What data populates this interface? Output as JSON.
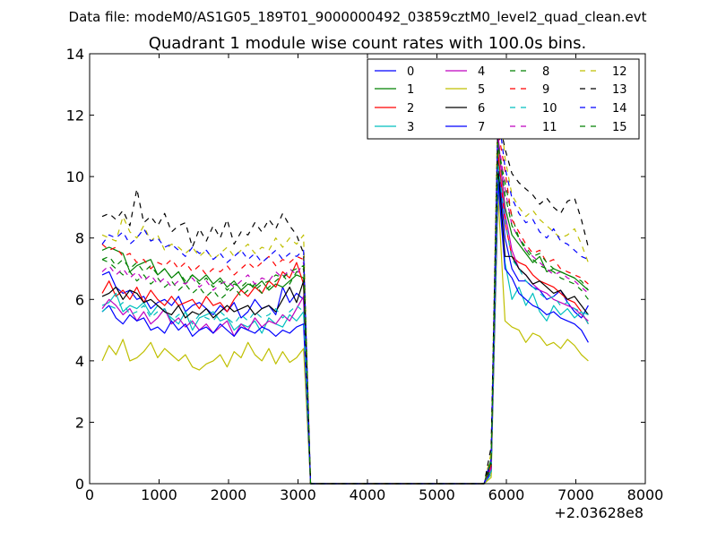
{
  "chart_data": {
    "type": "line",
    "suptitle": "Data file: modeM0/AS1G05_189T01_9000000492_03859cztM0_level2_quad_clean.evt",
    "title": "Quadrant 1 module wise count rates with 100.0s bins.",
    "xlabel": "",
    "ylabel": "",
    "x_offset_label": "+2.03628e8",
    "xlim": [
      0,
      8000
    ],
    "ylim": [
      0,
      14
    ],
    "x_ticks": [
      "0",
      "1000",
      "2000",
      "3000",
      "4000",
      "5000",
      "6000",
      "7000",
      "8000"
    ],
    "y_ticks": [
      "0",
      "2",
      "4",
      "6",
      "8",
      "10",
      "12",
      "14"
    ],
    "legend_position": "top-right",
    "legend_columns": 4,
    "x": [
      180,
      280,
      380,
      480,
      580,
      680,
      780,
      880,
      980,
      1080,
      1180,
      1280,
      1380,
      1480,
      1580,
      1680,
      1780,
      1880,
      1980,
      2080,
      2180,
      2280,
      2380,
      2480,
      2580,
      2680,
      2780,
      2880,
      2980,
      3080,
      3180,
      3280,
      3380,
      3480,
      3580,
      3680,
      3780,
      3880,
      3980,
      4080,
      4180,
      4280,
      4380,
      4480,
      4580,
      4680,
      4780,
      4880,
      4980,
      5080,
      5180,
      5280,
      5380,
      5480,
      5580,
      5680,
      5780,
      5880,
      5980,
      6080,
      6180,
      6280,
      6380,
      6480,
      6580,
      6680,
      6780,
      6880,
      6980,
      7080,
      7180
    ],
    "series": [
      {
        "name": "0",
        "color": "#0000ff",
        "dashed": false,
        "values": [
          6.8,
          6.9,
          6.4,
          6.2,
          6.3,
          6.0,
          6.1,
          5.7,
          5.9,
          6.0,
          5.8,
          6.1,
          5.6,
          5.8,
          5.9,
          5.7,
          5.5,
          5.8,
          5.6,
          5.9,
          5.4,
          5.6,
          6.0,
          5.7,
          5.8,
          5.5,
          6.4,
          5.9,
          6.2,
          6.0,
          0,
          0,
          0,
          0,
          0,
          0,
          0,
          0,
          0,
          0,
          0,
          0,
          0,
          0,
          0,
          0,
          0,
          0,
          0,
          0,
          0,
          0,
          0,
          0,
          0,
          0,
          0.4,
          10.5,
          8.0,
          7.0,
          6.6,
          6.6,
          6.4,
          6.3,
          6.0,
          6.1,
          6.3,
          5.9,
          5.6,
          5.4,
          5.8
        ]
      },
      {
        "name": "1",
        "color": "#008000",
        "dashed": false,
        "values": [
          7.6,
          7.7,
          7.6,
          7.5,
          6.9,
          7.1,
          7.2,
          7.3,
          6.8,
          7.0,
          6.7,
          6.9,
          6.5,
          6.8,
          6.6,
          6.8,
          6.5,
          6.7,
          6.4,
          6.6,
          6.3,
          6.5,
          6.4,
          6.6,
          6.3,
          6.5,
          6.4,
          6.6,
          6.8,
          6.7,
          0,
          0,
          0,
          0,
          0,
          0,
          0,
          0,
          0,
          0,
          0,
          0,
          0,
          0,
          0,
          0,
          0,
          0,
          0,
          0,
          0,
          0,
          0,
          0,
          0,
          0,
          0.8,
          11.2,
          9.0,
          8.1,
          7.8,
          7.5,
          7.2,
          7.4,
          6.9,
          7.0,
          6.9,
          6.8,
          6.7,
          6.5,
          6.3
        ]
      },
      {
        "name": "2",
        "color": "#ff0000",
        "dashed": false,
        "values": [
          6.2,
          6.6,
          6.1,
          6.3,
          6.0,
          6.4,
          5.9,
          6.3,
          6.0,
          5.8,
          6.1,
          5.8,
          5.9,
          6.0,
          5.7,
          6.1,
          5.8,
          5.9,
          5.6,
          6.0,
          6.3,
          6.1,
          6.4,
          6.2,
          6.6,
          6.4,
          6.9,
          6.7,
          7.2,
          6.5,
          0,
          0,
          0,
          0,
          0,
          0,
          0,
          0,
          0,
          0,
          0,
          0,
          0,
          0,
          0,
          0,
          0,
          0,
          0,
          0,
          0,
          0,
          0,
          0,
          0,
          0,
          0.5,
          10.8,
          8.5,
          7.4,
          7.2,
          7.1,
          6.8,
          6.6,
          6.5,
          6.4,
          6.2,
          6.0,
          5.9,
          5.6,
          5.2
        ]
      },
      {
        "name": "3",
        "color": "#00bfbf",
        "dashed": false,
        "values": [
          5.8,
          5.9,
          6.2,
          5.6,
          5.8,
          5.7,
          5.9,
          5.5,
          5.8,
          5.6,
          5.4,
          5.2,
          5.6,
          5.0,
          5.4,
          5.5,
          5.6,
          5.3,
          5.4,
          5.0,
          5.2,
          5.1,
          5.3,
          4.9,
          5.4,
          5.2,
          5.1,
          5.5,
          5.3,
          5.6,
          0,
          0,
          0,
          0,
          0,
          0,
          0,
          0,
          0,
          0,
          0,
          0,
          0,
          0,
          0,
          0,
          0,
          0,
          0,
          0,
          0,
          0,
          0,
          0,
          0,
          0,
          0.3,
          10.0,
          7.2,
          6.0,
          6.4,
          5.8,
          6.2,
          5.6,
          5.3,
          5.8,
          5.5,
          5.7,
          5.4,
          5.6,
          5.2
        ]
      },
      {
        "name": "4",
        "color": "#bf00bf",
        "dashed": false,
        "values": [
          5.7,
          6.0,
          5.8,
          5.5,
          5.7,
          5.3,
          5.6,
          5.2,
          5.4,
          5.7,
          5.2,
          5.4,
          5.1,
          5.3,
          5.0,
          5.2,
          4.9,
          5.1,
          5.3,
          4.8,
          5.2,
          5.0,
          5.4,
          5.1,
          5.3,
          5.2,
          5.5,
          5.3,
          5.7,
          6.1,
          0,
          0,
          0,
          0,
          0,
          0,
          0,
          0,
          0,
          0,
          0,
          0,
          0,
          0,
          0,
          0,
          0,
          0,
          0,
          0,
          0,
          0,
          0,
          0,
          0,
          0,
          0.6,
          11.4,
          8.8,
          7.6,
          7.0,
          6.8,
          6.5,
          6.3,
          6.2,
          6.0,
          5.9,
          5.8,
          5.7,
          5.5,
          5.3
        ]
      },
      {
        "name": "5",
        "color": "#bfbf00",
        "dashed": false,
        "values": [
          4.0,
          4.5,
          4.2,
          4.7,
          4.0,
          4.1,
          4.3,
          4.6,
          4.1,
          4.4,
          4.2,
          4.0,
          4.2,
          3.8,
          3.7,
          3.9,
          4.0,
          4.2,
          3.8,
          4.3,
          4.1,
          4.6,
          4.2,
          4.0,
          4.4,
          3.9,
          4.3,
          3.95,
          4.1,
          4.4,
          0,
          0,
          0,
          0,
          0,
          0,
          0,
          0,
          0,
          0,
          0,
          0,
          0,
          0,
          0,
          0,
          0,
          0,
          0,
          0,
          0,
          0,
          0,
          0,
          0,
          0,
          0.2,
          9.4,
          5.3,
          5.1,
          5.0,
          4.6,
          4.9,
          4.8,
          4.5,
          4.6,
          4.4,
          4.7,
          4.5,
          4.2,
          4.0
        ]
      },
      {
        "name": "6",
        "color": "#000000",
        "dashed": false,
        "values": [
          6.1,
          6.2,
          6.4,
          6.0,
          6.3,
          6.2,
          5.9,
          6.0,
          5.8,
          5.6,
          5.5,
          5.8,
          5.4,
          5.6,
          5.5,
          5.7,
          5.4,
          5.6,
          5.8,
          5.6,
          5.7,
          5.8,
          5.5,
          5.7,
          5.8,
          5.6,
          6.0,
          6.4,
          5.9,
          6.6,
          0,
          0,
          0,
          0,
          0,
          0,
          0,
          0,
          0,
          0,
          0,
          0,
          0,
          0,
          0,
          0,
          0,
          0,
          0,
          0,
          0,
          0,
          0,
          0,
          0,
          0,
          0.7,
          10.3,
          7.4,
          7.4,
          7.0,
          6.8,
          6.5,
          6.6,
          6.4,
          6.2,
          6.3,
          6.0,
          6.1,
          5.8,
          5.5
        ]
      },
      {
        "name": "7",
        "color": "#0000ff",
        "dashed": false,
        "values": [
          5.6,
          5.8,
          5.4,
          5.2,
          5.5,
          5.3,
          5.4,
          5.0,
          5.1,
          4.9,
          5.3,
          5.0,
          5.2,
          4.8,
          5.0,
          5.1,
          4.9,
          5.2,
          5.0,
          4.8,
          5.1,
          5.0,
          4.9,
          5.1,
          5.0,
          4.8,
          5.0,
          4.9,
          5.1,
          5.2,
          0,
          0,
          0,
          0,
          0,
          0,
          0,
          0,
          0,
          0,
          0,
          0,
          0,
          0,
          0,
          0,
          0,
          0,
          0,
          0,
          0,
          0,
          0,
          0,
          0,
          0,
          0.4,
          9.8,
          7.0,
          6.7,
          6.2,
          6.0,
          5.8,
          5.7,
          5.5,
          5.6,
          5.4,
          5.3,
          5.2,
          5.0,
          4.6
        ]
      },
      {
        "name": "8",
        "color": "#008000",
        "dashed": true,
        "values": [
          7.3,
          7.2,
          7.0,
          6.8,
          6.9,
          6.6,
          6.8,
          6.5,
          6.7,
          6.4,
          6.6,
          6.3,
          6.5,
          6.2,
          6.4,
          6.1,
          6.3,
          6.0,
          6.2,
          6.4,
          6.1,
          6.3,
          6.5,
          6.2,
          6.4,
          6.6,
          6.8,
          6.5,
          6.9,
          7.0,
          0,
          0,
          0,
          0,
          0,
          0,
          0,
          0,
          0,
          0,
          0,
          0,
          0,
          0,
          0,
          0,
          0,
          0,
          0,
          0,
          0,
          0,
          0,
          0,
          0,
          0,
          0.5,
          11.0,
          9.8,
          8.7,
          8.0,
          7.6,
          7.3,
          7.1,
          7.0,
          6.9,
          6.7,
          6.6,
          6.5,
          6.3,
          6.0
        ]
      },
      {
        "name": "9",
        "color": "#ff0000",
        "dashed": true,
        "values": [
          7.8,
          7.6,
          7.7,
          7.4,
          7.5,
          7.2,
          7.3,
          7.0,
          7.2,
          7.1,
          7.3,
          7.0,
          7.2,
          6.9,
          7.1,
          6.8,
          7.0,
          6.9,
          7.1,
          6.8,
          7.0,
          7.2,
          7.0,
          7.2,
          7.4,
          7.1,
          7.3,
          7.2,
          7.4,
          7.3,
          0,
          0,
          0,
          0,
          0,
          0,
          0,
          0,
          0,
          0,
          0,
          0,
          0,
          0,
          0,
          0,
          0,
          0,
          0,
          0,
          0,
          0,
          0,
          0,
          0,
          0,
          0.6,
          11.5,
          10.2,
          8.6,
          8.2,
          7.8,
          7.5,
          7.6,
          7.2,
          7.3,
          7.0,
          6.9,
          6.8,
          6.7,
          6.5
        ]
      },
      {
        "name": "10",
        "color": "#00bfbf",
        "dashed": true,
        "values": [
          5.6,
          5.8,
          5.7,
          5.9,
          5.5,
          5.6,
          5.8,
          5.4,
          5.6,
          5.7,
          5.3,
          5.5,
          5.6,
          5.2,
          5.5,
          5.4,
          5.3,
          5.6,
          5.4,
          5.2,
          5.5,
          5.3,
          5.6,
          5.4,
          5.5,
          5.7,
          5.4,
          5.6,
          5.8,
          5.6,
          0,
          0,
          0,
          0,
          0,
          0,
          0,
          0,
          0,
          0,
          0,
          0,
          0,
          0,
          0,
          0,
          0,
          0,
          0,
          0,
          0,
          0,
          0,
          0,
          0,
          0,
          0.4,
          10.4,
          8.6,
          7.3,
          7.0,
          6.6,
          6.4,
          6.2,
          6.0,
          6.1,
          5.8,
          5.9,
          5.7,
          5.6,
          5.5
        ]
      },
      {
        "name": "11",
        "color": "#bf00bf",
        "dashed": true,
        "values": [
          6.9,
          7.1,
          6.8,
          7.0,
          6.7,
          6.9,
          6.6,
          6.8,
          6.5,
          6.7,
          6.4,
          6.6,
          6.5,
          6.7,
          6.4,
          6.6,
          6.3,
          6.5,
          6.6,
          6.4,
          6.6,
          6.8,
          6.5,
          6.7,
          6.6,
          6.9,
          6.7,
          7.0,
          6.8,
          7.2,
          0,
          0,
          0,
          0,
          0,
          0,
          0,
          0,
          0,
          0,
          0,
          0,
          0,
          0,
          0,
          0,
          0,
          0,
          0,
          0,
          0,
          0,
          0,
          0,
          0,
          0,
          0.5,
          11.3,
          9.6,
          8.4,
          8.0,
          7.6,
          7.4,
          7.2,
          7.0,
          6.8,
          6.9,
          6.7,
          6.6,
          6.4,
          6.2
        ]
      },
      {
        "name": "12",
        "color": "#bfbf00",
        "dashed": true,
        "values": [
          8.1,
          8.0,
          7.9,
          8.7,
          8.2,
          8.0,
          8.4,
          7.9,
          8.1,
          7.6,
          7.8,
          7.7,
          7.5,
          7.7,
          7.4,
          7.6,
          7.3,
          7.5,
          7.7,
          7.4,
          7.6,
          7.8,
          7.5,
          7.7,
          7.6,
          8.0,
          7.7,
          8.0,
          7.8,
          8.1,
          0,
          0,
          0,
          0,
          0,
          0,
          0,
          0,
          0,
          0,
          0,
          0,
          0,
          0,
          0,
          0,
          0,
          0,
          0,
          0,
          0,
          0,
          0,
          0,
          0,
          0,
          1.0,
          12.9,
          10.6,
          9.4,
          9.0,
          8.7,
          8.9,
          8.6,
          8.4,
          8.2,
          8.0,
          8.1,
          8.3,
          7.8,
          7.2
        ]
      },
      {
        "name": "13",
        "color": "#000000",
        "dashed": true,
        "values": [
          8.7,
          8.8,
          8.6,
          8.9,
          8.4,
          9.6,
          8.5,
          8.7,
          8.4,
          8.8,
          8.2,
          8.4,
          8.5,
          7.7,
          8.3,
          7.9,
          8.4,
          8.0,
          8.6,
          7.8,
          8.2,
          8.1,
          8.5,
          8.2,
          8.6,
          8.3,
          8.8,
          8.4,
          8.1,
          7.5,
          0,
          0,
          0,
          0,
          0,
          0,
          0,
          0,
          0,
          0,
          0,
          0,
          0,
          0,
          0,
          0,
          0,
          0,
          0,
          0,
          0,
          0,
          0,
          0,
          0,
          0,
          1.2,
          12.0,
          10.9,
          10.1,
          9.8,
          9.6,
          9.4,
          9.1,
          9.3,
          9.0,
          8.8,
          9.2,
          9.3,
          8.6,
          7.7
        ]
      },
      {
        "name": "14",
        "color": "#0000ff",
        "dashed": true,
        "values": [
          7.8,
          8.1,
          8.0,
          8.2,
          7.8,
          8.0,
          8.3,
          7.9,
          8.0,
          7.7,
          7.8,
          7.6,
          7.4,
          7.7,
          7.5,
          7.6,
          7.3,
          7.5,
          7.2,
          7.4,
          7.6,
          7.3,
          7.5,
          7.2,
          7.4,
          7.6,
          7.3,
          7.5,
          7.4,
          7.6,
          0,
          0,
          0,
          0,
          0,
          0,
          0,
          0,
          0,
          0,
          0,
          0,
          0,
          0,
          0,
          0,
          0,
          0,
          0,
          0,
          0,
          0,
          0,
          0,
          0,
          0,
          0.8,
          12.1,
          10.3,
          9.3,
          8.8,
          8.5,
          8.6,
          8.2,
          8.0,
          8.3,
          7.9,
          7.8,
          7.6,
          7.4,
          7.3
        ]
      },
      {
        "name": "15",
        "color": "#008000",
        "dashed": true,
        "values": [
          7.3,
          7.4,
          7.1,
          7.3,
          7.0,
          7.2,
          6.9,
          7.1,
          6.8,
          7.0,
          6.7,
          6.9,
          6.6,
          6.8,
          6.5,
          6.7,
          6.4,
          6.6,
          6.3,
          6.5,
          6.4,
          6.6,
          6.3,
          6.5,
          6.6,
          6.8,
          6.7,
          6.9,
          7.0,
          7.1,
          0,
          0,
          0,
          0,
          0,
          0,
          0,
          0,
          0,
          0,
          0,
          0,
          0,
          0,
          0,
          0,
          0,
          0,
          0,
          0,
          0,
          0,
          0,
          0,
          0,
          0,
          0.7,
          11.1,
          9.4,
          8.4,
          8.0,
          7.7,
          7.4,
          7.5,
          7.2,
          7.0,
          6.9,
          6.8,
          6.7,
          6.6,
          6.3
        ]
      }
    ]
  }
}
